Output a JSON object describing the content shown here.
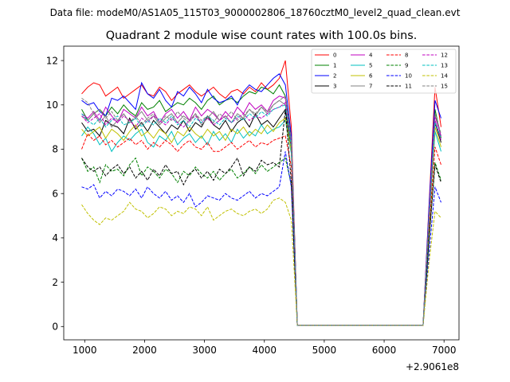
{
  "figure": {
    "suptitle": "Data file: modeM0/AS1A05_115T03_9000002806_18760cztM0_level2_quad_clean.evt"
  },
  "chart_data": {
    "type": "line",
    "title": "Quadrant 2 module wise count rates with 100.0s bins.",
    "xlabel": "",
    "ylabel": "",
    "x_offset_label": "+2.9061e8",
    "xlim": [
      650,
      7250
    ],
    "ylim": [
      -0.6,
      12.65
    ],
    "xticks": [
      1000,
      2000,
      3000,
      4000,
      5000,
      6000,
      7000
    ],
    "xtick_labels": [
      "1000",
      "2000",
      "3000",
      "4000",
      "5000",
      "6000",
      "7000"
    ],
    "yticks": [
      0,
      2,
      4,
      6,
      8,
      10,
      12
    ],
    "ytick_labels": [
      "0",
      "2",
      "4",
      "6",
      "8",
      "10",
      "12"
    ],
    "legend_location": "top-right",
    "legend_columns": 4,
    "x": [
      950,
      1050,
      1150,
      1250,
      1350,
      1450,
      1550,
      1650,
      1750,
      1850,
      1950,
      2050,
      2150,
      2250,
      2350,
      2450,
      2550,
      2650,
      2750,
      2850,
      2950,
      3050,
      3150,
      3250,
      3350,
      3450,
      3550,
      3650,
      3750,
      3850,
      3950,
      4050,
      4150,
      4250,
      4350,
      4450,
      4550,
      4650,
      4750,
      4850,
      4950,
      5050,
      5150,
      5250,
      5350,
      5450,
      5550,
      5650,
      5750,
      5850,
      5950,
      6050,
      6150,
      6250,
      6350,
      6450,
      6550,
      6650,
      6750,
      6850,
      6950
    ],
    "series": [
      {
        "name": "0",
        "color": "#ff0000",
        "dash": "solid",
        "values": [
          10.5,
          10.8,
          11.0,
          10.9,
          10.4,
          10.6,
          10.8,
          10.3,
          10.5,
          10.7,
          10.9,
          10.5,
          10.4,
          10.8,
          10.6,
          10.2,
          10.5,
          10.7,
          10.9,
          10.6,
          10.4,
          10.6,
          10.8,
          10.5,
          10.3,
          10.6,
          10.7,
          10.5,
          10.8,
          10.6,
          11.0,
          10.7,
          10.9,
          11.2,
          12.0,
          9.0,
          0.05,
          0.05,
          0.05,
          0.05,
          0.05,
          0.05,
          0.05,
          0.05,
          0.05,
          0.05,
          0.05,
          0.05,
          0.05,
          0.05,
          0.05,
          0.05,
          0.05,
          0.05,
          0.05,
          0.05,
          0.05,
          0.05,
          5.5,
          10.8,
          9.0
        ]
      },
      {
        "name": "1",
        "color": "#008000",
        "dash": "solid",
        "values": [
          9.8,
          9.3,
          9.6,
          9.8,
          9.5,
          9.9,
          9.6,
          10.0,
          9.7,
          9.5,
          10.1,
          9.8,
          9.9,
          10.2,
          9.7,
          9.9,
          10.1,
          10.0,
          10.3,
          10.1,
          9.8,
          10.2,
          10.4,
          10.0,
          10.2,
          10.3,
          10.1,
          10.4,
          10.6,
          10.5,
          10.8,
          10.7,
          10.5,
          10.9,
          10.4,
          8.5,
          0.05,
          0.05,
          0.05,
          0.05,
          0.05,
          0.05,
          0.05,
          0.05,
          0.05,
          0.05,
          0.05,
          0.05,
          0.05,
          0.05,
          0.05,
          0.05,
          0.05,
          0.05,
          0.05,
          0.05,
          0.05,
          0.05,
          5.0,
          9.8,
          8.5
        ]
      },
      {
        "name": "2",
        "color": "#0000ff",
        "dash": "solid",
        "values": [
          10.2,
          10.0,
          10.1,
          9.7,
          9.5,
          10.3,
          10.2,
          10.4,
          10.1,
          9.8,
          11.0,
          10.5,
          10.3,
          10.7,
          10.2,
          9.9,
          10.6,
          10.4,
          10.8,
          10.5,
          10.1,
          10.7,
          10.3,
          10.1,
          10.2,
          10.4,
          10.0,
          10.6,
          10.9,
          10.7,
          10.6,
          10.9,
          11.2,
          11.4,
          10.9,
          8.6,
          0.05,
          0.05,
          0.05,
          0.05,
          0.05,
          0.05,
          0.05,
          0.05,
          0.05,
          0.05,
          0.05,
          0.05,
          0.05,
          0.05,
          0.05,
          0.05,
          0.05,
          0.05,
          0.05,
          0.05,
          0.05,
          0.05,
          5.4,
          10.2,
          9.4
        ]
      },
      {
        "name": "3",
        "color": "#000000",
        "dash": "solid",
        "values": [
          9.2,
          8.8,
          8.9,
          8.6,
          9.3,
          9.1,
          9.0,
          8.7,
          9.4,
          8.9,
          9.2,
          8.8,
          9.3,
          9.0,
          8.7,
          9.1,
          8.9,
          9.3,
          8.8,
          9.2,
          9.0,
          9.5,
          9.1,
          8.9,
          9.3,
          8.8,
          9.2,
          9.4,
          9.0,
          9.6,
          9.1,
          9.3,
          9.0,
          9.4,
          9.8,
          8.0,
          0.05,
          0.05,
          0.05,
          0.05,
          0.05,
          0.05,
          0.05,
          0.05,
          0.05,
          0.05,
          0.05,
          0.05,
          0.05,
          0.05,
          0.05,
          0.05,
          0.05,
          0.05,
          0.05,
          0.05,
          0.05,
          0.05,
          4.8,
          9.2,
          8.3
        ]
      },
      {
        "name": "4",
        "color": "#c000c0",
        "dash": "solid",
        "values": [
          9.6,
          9.4,
          9.7,
          9.3,
          9.9,
          9.5,
          9.2,
          9.8,
          9.6,
          9.4,
          9.9,
          9.5,
          9.7,
          9.2,
          9.6,
          9.8,
          9.4,
          9.7,
          9.3,
          9.9,
          9.5,
          9.8,
          9.6,
          9.3,
          9.7,
          9.4,
          9.9,
          9.6,
          10.1,
          9.8,
          10.0,
          9.7,
          10.2,
          10.4,
          10.3,
          8.2,
          0.05,
          0.05,
          0.05,
          0.05,
          0.05,
          0.05,
          0.05,
          0.05,
          0.05,
          0.05,
          0.05,
          0.05,
          0.05,
          0.05,
          0.05,
          0.05,
          0.05,
          0.05,
          0.05,
          0.05,
          0.05,
          0.05,
          5.0,
          9.5,
          8.6
        ]
      },
      {
        "name": "5",
        "color": "#00c0c0",
        "dash": "solid",
        "values": [
          8.6,
          9.0,
          8.7,
          8.2,
          8.5,
          7.9,
          8.3,
          8.6,
          8.4,
          8.7,
          8.9,
          8.3,
          8.1,
          8.6,
          8.4,
          8.8,
          8.2,
          8.5,
          8.7,
          8.3,
          8.6,
          8.2,
          8.8,
          8.4,
          8.7,
          8.3,
          8.9,
          8.5,
          8.8,
          8.6,
          9.1,
          8.7,
          8.9,
          9.0,
          9.3,
          7.8,
          0.05,
          0.05,
          0.05,
          0.05,
          0.05,
          0.05,
          0.05,
          0.05,
          0.05,
          0.05,
          0.05,
          0.05,
          0.05,
          0.05,
          0.05,
          0.05,
          0.05,
          0.05,
          0.05,
          0.05,
          0.05,
          0.05,
          4.5,
          8.8,
          7.9
        ]
      },
      {
        "name": "6",
        "color": "#c0c000",
        "dash": "solid",
        "values": [
          8.9,
          8.6,
          8.8,
          9.0,
          8.5,
          8.9,
          8.7,
          8.4,
          8.8,
          9.1,
          8.6,
          8.8,
          8.5,
          8.9,
          8.7,
          8.3,
          8.8,
          8.6,
          9.0,
          8.7,
          8.5,
          8.9,
          8.6,
          8.8,
          8.4,
          8.9,
          8.7,
          9.0,
          8.6,
          8.9,
          8.7,
          9.1,
          8.8,
          9.2,
          9.4,
          7.9,
          0.05,
          0.05,
          0.05,
          0.05,
          0.05,
          0.05,
          0.05,
          0.05,
          0.05,
          0.05,
          0.05,
          0.05,
          0.05,
          0.05,
          0.05,
          0.05,
          0.05,
          0.05,
          0.05,
          0.05,
          0.05,
          0.05,
          4.6,
          9.0,
          8.1
        ]
      },
      {
        "name": "7",
        "color": "#808080",
        "dash": "solid",
        "values": [
          9.5,
          9.3,
          9.6,
          9.2,
          9.5,
          9.0,
          9.3,
          9.6,
          9.2,
          9.4,
          9.7,
          9.3,
          9.5,
          9.1,
          9.4,
          9.6,
          9.2,
          9.5,
          9.3,
          9.6,
          9.1,
          9.4,
          9.7,
          9.3,
          9.5,
          9.2,
          9.6,
          9.4,
          9.8,
          9.5,
          9.9,
          9.6,
          10.0,
          10.2,
          10.0,
          8.3,
          0.05,
          0.05,
          0.05,
          0.05,
          0.05,
          0.05,
          0.05,
          0.05,
          0.05,
          0.05,
          0.05,
          0.05,
          0.05,
          0.05,
          0.05,
          0.05,
          0.05,
          0.05,
          0.05,
          0.05,
          0.05,
          0.05,
          4.9,
          9.3,
          8.4
        ]
      },
      {
        "name": "8",
        "color": "#ff0000",
        "dash": "dashed",
        "values": [
          8.0,
          8.7,
          8.4,
          8.6,
          8.2,
          8.4,
          8.1,
          8.3,
          8.5,
          8.2,
          8.4,
          8.0,
          8.3,
          8.1,
          8.4,
          8.2,
          7.9,
          8.2,
          8.4,
          8.1,
          8.0,
          8.3,
          7.9,
          7.9,
          8.1,
          8.3,
          8.0,
          8.2,
          8.4,
          8.1,
          8.3,
          8.2,
          8.4,
          8.5,
          8.6,
          7.2,
          0.05,
          0.05,
          0.05,
          0.05,
          0.05,
          0.05,
          0.05,
          0.05,
          0.05,
          0.05,
          0.05,
          0.05,
          0.05,
          0.05,
          0.05,
          0.05,
          0.05,
          0.05,
          0.05,
          0.05,
          0.05,
          0.05,
          4.3,
          8.1,
          7.3
        ]
      },
      {
        "name": "9",
        "color": "#008000",
        "dash": "dashed",
        "values": [
          7.6,
          7.0,
          7.2,
          6.5,
          7.3,
          7.0,
          7.1,
          6.8,
          7.3,
          7.6,
          6.8,
          7.2,
          7.0,
          6.7,
          7.1,
          6.9,
          6.5,
          7.0,
          6.8,
          7.2,
          6.9,
          6.7,
          7.0,
          6.6,
          6.9,
          7.1,
          6.7,
          6.9,
          7.2,
          6.9,
          7.3,
          7.0,
          7.2,
          7.4,
          7.6,
          6.4,
          0.05,
          0.05,
          0.05,
          0.05,
          0.05,
          0.05,
          0.05,
          0.05,
          0.05,
          0.05,
          0.05,
          0.05,
          0.05,
          0.05,
          0.05,
          0.05,
          0.05,
          0.05,
          0.05,
          0.05,
          0.05,
          0.05,
          3.9,
          7.4,
          6.6
        ]
      },
      {
        "name": "10",
        "color": "#0000ff",
        "dash": "dashed",
        "values": [
          6.3,
          6.2,
          6.4,
          5.8,
          6.1,
          5.9,
          6.2,
          6.1,
          5.9,
          6.2,
          5.8,
          6.3,
          6.0,
          5.8,
          6.1,
          5.7,
          5.9,
          5.6,
          6.0,
          5.4,
          5.6,
          5.9,
          5.8,
          5.7,
          6.0,
          5.8,
          5.7,
          5.9,
          6.1,
          5.8,
          6.0,
          5.9,
          6.1,
          6.3,
          7.9,
          6.3,
          0.05,
          0.05,
          0.05,
          0.05,
          0.05,
          0.05,
          0.05,
          0.05,
          0.05,
          0.05,
          0.05,
          0.05,
          0.05,
          0.05,
          0.05,
          0.05,
          0.05,
          0.05,
          0.05,
          0.05,
          0.05,
          0.05,
          3.3,
          6.3,
          5.6
        ]
      },
      {
        "name": "11",
        "color": "#000000",
        "dash": "dashed",
        "values": [
          7.6,
          7.2,
          7.0,
          7.2,
          6.8,
          7.1,
          7.3,
          6.9,
          7.2,
          6.7,
          7.0,
          6.6,
          7.1,
          6.8,
          7.3,
          6.9,
          7.0,
          6.4,
          6.9,
          7.1,
          6.7,
          7.0,
          6.6,
          7.1,
          6.9,
          7.2,
          7.6,
          6.8,
          7.2,
          7.0,
          7.5,
          7.3,
          7.4,
          7.2,
          9.8,
          6.5,
          0.05,
          0.05,
          0.05,
          0.05,
          0.05,
          0.05,
          0.05,
          0.05,
          0.05,
          0.05,
          0.05,
          0.05,
          0.05,
          0.05,
          0.05,
          0.05,
          0.05,
          0.05,
          0.05,
          0.05,
          0.05,
          0.05,
          4.0,
          7.3,
          6.5
        ]
      },
      {
        "name": "12",
        "color": "#c000c0",
        "dash": "dashed",
        "values": [
          9.5,
          9.2,
          9.4,
          9.6,
          9.1,
          9.4,
          9.2,
          9.5,
          9.3,
          9.0,
          9.4,
          9.2,
          9.5,
          9.3,
          9.1,
          9.4,
          9.2,
          9.0,
          9.3,
          9.5,
          9.2,
          9.4,
          9.1,
          9.3,
          9.5,
          9.2,
          9.4,
          9.6,
          9.3,
          9.5,
          9.4,
          9.6,
          9.8,
          9.9,
          10.1,
          8.1,
          0.05,
          0.05,
          0.05,
          0.05,
          0.05,
          0.05,
          0.05,
          0.05,
          0.05,
          0.05,
          0.05,
          0.05,
          0.05,
          0.05,
          0.05,
          0.05,
          0.05,
          0.05,
          0.05,
          0.05,
          0.05,
          0.05,
          4.8,
          9.3,
          8.4
        ]
      },
      {
        "name": "13",
        "color": "#00c0c0",
        "dash": "dashed",
        "values": [
          9.6,
          9.3,
          9.1,
          9.4,
          9.0,
          9.3,
          9.5,
          9.1,
          9.2,
          9.4,
          9.0,
          9.3,
          9.1,
          9.4,
          9.2,
          9.5,
          9.1,
          9.3,
          9.0,
          9.4,
          9.2,
          9.5,
          9.3,
          9.1,
          9.4,
          9.2,
          9.5,
          9.3,
          9.6,
          9.4,
          9.7,
          9.5,
          9.8,
          9.9,
          10.0,
          8.1,
          0.05,
          0.05,
          0.05,
          0.05,
          0.05,
          0.05,
          0.05,
          0.05,
          0.05,
          0.05,
          0.05,
          0.05,
          0.05,
          0.05,
          0.05,
          0.05,
          0.05,
          0.05,
          0.05,
          0.05,
          0.05,
          0.05,
          4.8,
          9.2,
          8.5
        ]
      },
      {
        "name": "14",
        "color": "#c0c000",
        "dash": "dashed",
        "values": [
          5.5,
          5.1,
          4.8,
          4.6,
          4.9,
          4.8,
          5.0,
          5.2,
          5.6,
          5.3,
          5.2,
          4.9,
          5.1,
          5.4,
          5.3,
          5.0,
          5.2,
          5.1,
          5.4,
          5.3,
          5.0,
          5.4,
          4.8,
          5.0,
          5.2,
          5.3,
          5.1,
          5.0,
          5.2,
          5.3,
          5.1,
          5.3,
          5.7,
          5.8,
          5.6,
          4.8,
          0.05,
          0.05,
          0.05,
          0.05,
          0.05,
          0.05,
          0.05,
          0.05,
          0.05,
          0.05,
          0.05,
          0.05,
          0.05,
          0.05,
          0.05,
          0.05,
          0.05,
          0.05,
          0.05,
          0.05,
          0.05,
          0.05,
          2.9,
          5.2,
          4.9
        ]
      },
      {
        "name": "15",
        "color": "#808080",
        "dash": "dashed",
        "values": [
          10.3,
          10.1,
          9.6,
          9.8,
          9.4,
          9.7,
          9.3,
          9.6,
          9.2,
          9.5,
          9.1,
          9.4,
          9.6,
          9.2,
          9.5,
          9.3,
          9.7,
          9.4,
          9.2,
          9.6,
          9.3,
          9.5,
          9.2,
          9.6,
          9.4,
          9.7,
          9.3,
          9.5,
          9.8,
          9.6,
          9.9,
          9.7,
          10.0,
          10.2,
          10.4,
          8.4,
          0.05,
          0.05,
          0.05,
          0.05,
          0.05,
          0.05,
          0.05,
          0.05,
          0.05,
          0.05,
          0.05,
          0.05,
          0.05,
          0.05,
          0.05,
          0.05,
          0.05,
          0.05,
          0.05,
          0.05,
          0.05,
          0.05,
          5.0,
          9.6,
          8.7
        ]
      }
    ]
  }
}
